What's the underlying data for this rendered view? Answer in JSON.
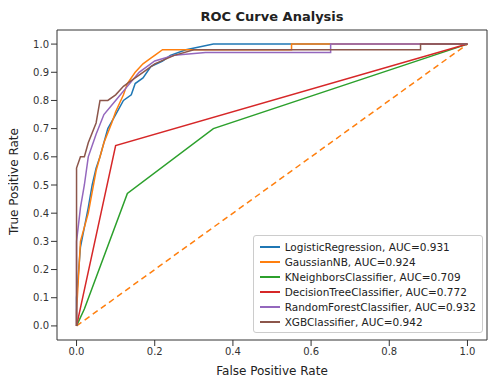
{
  "chart_data": {
    "type": "line",
    "title": "ROC Curve Analysis",
    "x_label": "False Positive Rate",
    "y_label": "True Positive Rate",
    "xlim": [
      -0.05,
      1.05
    ],
    "ylim": [
      -0.05,
      1.05
    ],
    "xticks": [
      {
        "value": 0,
        "label": "0.0"
      },
      0.2,
      0.4,
      0.6,
      0.8,
      {
        "value": 1,
        "label": "1.0"
      }
    ],
    "yticks": [
      {
        "value": 0,
        "label": "0.0"
      },
      0.1,
      0.2,
      0.3,
      0.4,
      0.5,
      0.6,
      0.7,
      0.8,
      0.9,
      {
        "value": 1,
        "label": "1.0"
      }
    ],
    "grid": false,
    "legend": "lower right",
    "series": [
      {
        "name": "LogisticRegression, AUC=0.931",
        "color": "#1f77b4",
        "line_style": "solid",
        "x": [
          0,
          0,
          0.01,
          0.02,
          0.03,
          0.04,
          0.05,
          0.06,
          0.08,
          0.1,
          0.12,
          0.14,
          0.15,
          0.17,
          0.19,
          0.22,
          0.24,
          0.28,
          0.35,
          1
        ],
        "values": [
          0,
          0.1,
          0.28,
          0.35,
          0.42,
          0.5,
          0.56,
          0.6,
          0.7,
          0.75,
          0.8,
          0.82,
          0.86,
          0.88,
          0.92,
          0.94,
          0.96,
          0.98,
          1,
          1
        ]
      },
      {
        "name": "GaussianNB, AUC=0.924",
        "color": "#ff7f0e",
        "line_style": "solid",
        "x": [
          0,
          0,
          0.01,
          0.03,
          0.05,
          0.07,
          0.09,
          0.1,
          0.12,
          0.13,
          0.15,
          0.17,
          0.19,
          0.2,
          0.22,
          0.55,
          0.55,
          1
        ],
        "values": [
          0,
          0.05,
          0.3,
          0.4,
          0.55,
          0.65,
          0.72,
          0.76,
          0.82,
          0.86,
          0.9,
          0.93,
          0.95,
          0.96,
          0.98,
          0.98,
          1,
          1
        ]
      },
      {
        "name": "KNeighborsClassifier, AUC=0.709",
        "color": "#2ca02c",
        "line_style": "solid",
        "x": [
          0,
          0.02,
          0.13,
          0.35,
          1
        ],
        "values": [
          0,
          0.06,
          0.47,
          0.7,
          1
        ]
      },
      {
        "name": "DecisionTreeClassifier, AUC=0.772",
        "color": "#d62728",
        "line_style": "solid",
        "x": [
          0,
          0.1,
          1
        ],
        "values": [
          0,
          0.64,
          1
        ]
      },
      {
        "name": "RandomForestClassifier, AUC=0.932",
        "color": "#9467bd",
        "line_style": "solid",
        "x": [
          0,
          0,
          0.01,
          0.02,
          0.03,
          0.05,
          0.07,
          0.1,
          0.13,
          0.16,
          0.2,
          0.25,
          0.33,
          0.65,
          0.65,
          1
        ],
        "values": [
          0,
          0.3,
          0.42,
          0.5,
          0.6,
          0.68,
          0.75,
          0.8,
          0.85,
          0.9,
          0.94,
          0.96,
          0.97,
          0.97,
          1,
          1
        ]
      },
      {
        "name": "XGBClassifier, AUC=0.942",
        "color": "#8c564b",
        "line_style": "solid",
        "x": [
          0,
          0,
          0.01,
          0.02,
          0.03,
          0.05,
          0.06,
          0.08,
          0.1,
          0.12,
          0.14,
          0.17,
          0.2,
          0.25,
          0.3,
          0.88,
          0.88,
          1
        ],
        "values": [
          0,
          0.56,
          0.6,
          0.6,
          0.65,
          0.72,
          0.8,
          0.8,
          0.82,
          0.85,
          0.87,
          0.9,
          0.93,
          0.96,
          0.98,
          0.98,
          1,
          1
        ]
      }
    ],
    "diagonal": {
      "x": [
        0,
        1
      ],
      "values": [
        0,
        1
      ],
      "color": "#ff7f0e",
      "line_style": "dashed"
    }
  }
}
